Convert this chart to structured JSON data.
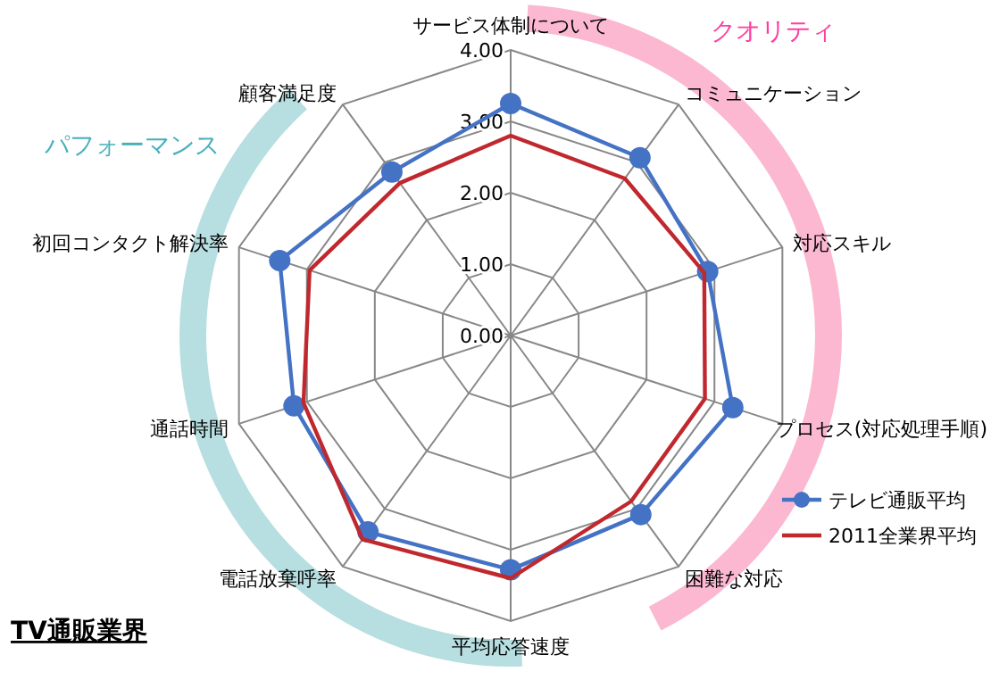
{
  "chart_data": {
    "type": "radar",
    "title": "TV通販業界",
    "categories": [
      "サービス体制について",
      "コミュニケーション",
      "対応スキル",
      "プロセス(対応処理手順)",
      "困難な対応",
      "平均応答速度",
      "電話放棄呼率",
      "通話時間",
      "初回コンタクト解決率",
      "顧客満足度"
    ],
    "series": [
      {
        "name": "テレビ通販平均",
        "color": "#4472c4",
        "marker": "circle",
        "values": [
          3.25,
          3.08,
          2.9,
          3.27,
          3.1,
          3.28,
          3.4,
          3.19,
          3.4,
          2.83
        ]
      },
      {
        "name": "2011全業界平均",
        "color": "#c0282d",
        "marker": "none",
        "values": [
          2.8,
          2.72,
          2.85,
          2.86,
          2.87,
          3.4,
          3.53,
          3.05,
          2.96,
          2.64
        ]
      }
    ],
    "ylim": [
      0,
      4
    ],
    "yticks": [
      {
        "value": 0,
        "label": "0.00"
      },
      {
        "value": 1,
        "label": "1.00"
      },
      {
        "value": 2,
        "label": "2.00"
      },
      {
        "value": 3,
        "label": "3.00"
      },
      {
        "value": 4,
        "label": "4.00"
      }
    ],
    "grid": true,
    "legend": "bottom right",
    "annotations": [
      "クオリティ",
      "パフォーマンス"
    ]
  }
}
